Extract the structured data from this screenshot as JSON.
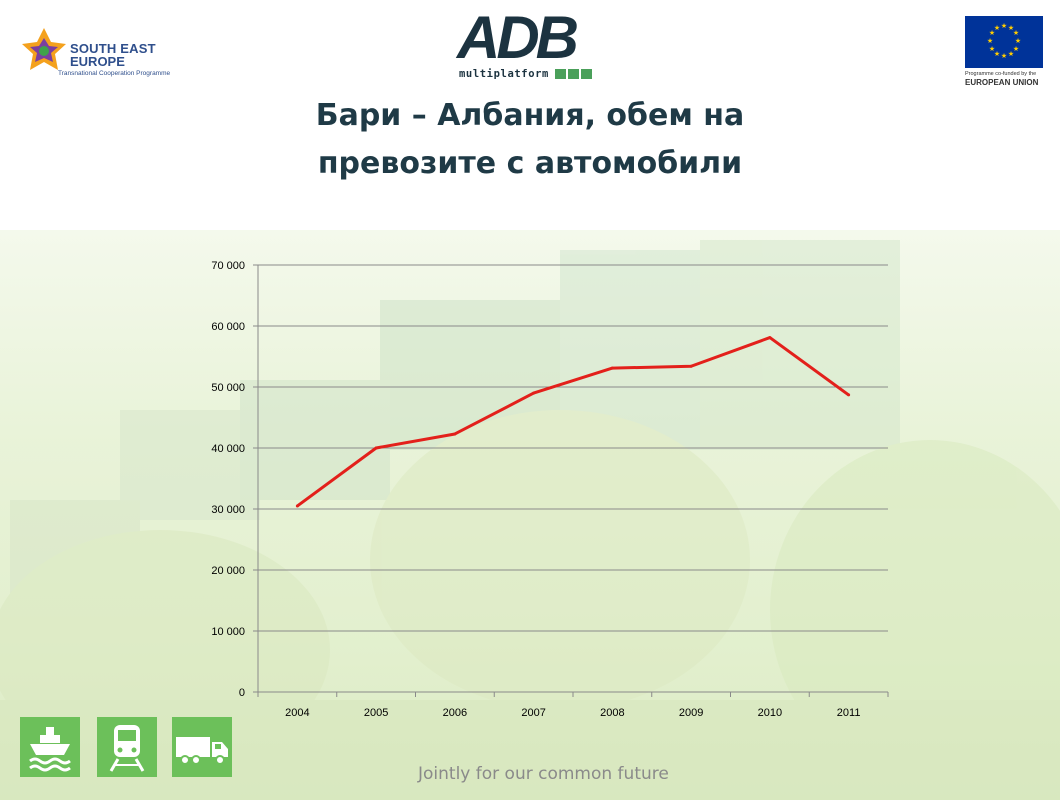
{
  "header": {
    "see_logo": {
      "line1": "SOUTH EAST",
      "line2": "EUROPE",
      "line3": "Transnational Cooperation Programme"
    },
    "adb_logo": {
      "main": "ADB",
      "sub": "multiplatform"
    },
    "eu_logo": {
      "caption1": "Programme co-funded by the",
      "caption2": "EUROPEAN UNION"
    }
  },
  "title": {
    "line1": "Бари – Албания, обем на",
    "line2": "превозите с автомобили"
  },
  "chart_data": {
    "type": "line",
    "categories": [
      "2004",
      "2005",
      "2006",
      "2007",
      "2008",
      "2009",
      "2010",
      "2011"
    ],
    "series": [
      {
        "values": [
          30500,
          40000,
          42300,
          49000,
          53100,
          53400,
          58100,
          48700
        ],
        "color": "#e3201b"
      }
    ],
    "y_ticks": [
      "0",
      "10 000",
      "20 000",
      "30 000",
      "40 000",
      "50 000",
      "60 000",
      "70 000"
    ],
    "ylim": [
      0,
      70000
    ],
    "y_step": 10000,
    "grid": true,
    "title": "",
    "xlabel": "",
    "ylabel": ""
  },
  "bottom_icons": [
    "ship-icon",
    "train-icon",
    "truck-icon"
  ],
  "colors": {
    "mode_icon_bg": "#6cc05a",
    "title": "#1f3a46",
    "eu_blue": "#003399"
  },
  "footer": {
    "slogan": "Jointly for our common future"
  }
}
